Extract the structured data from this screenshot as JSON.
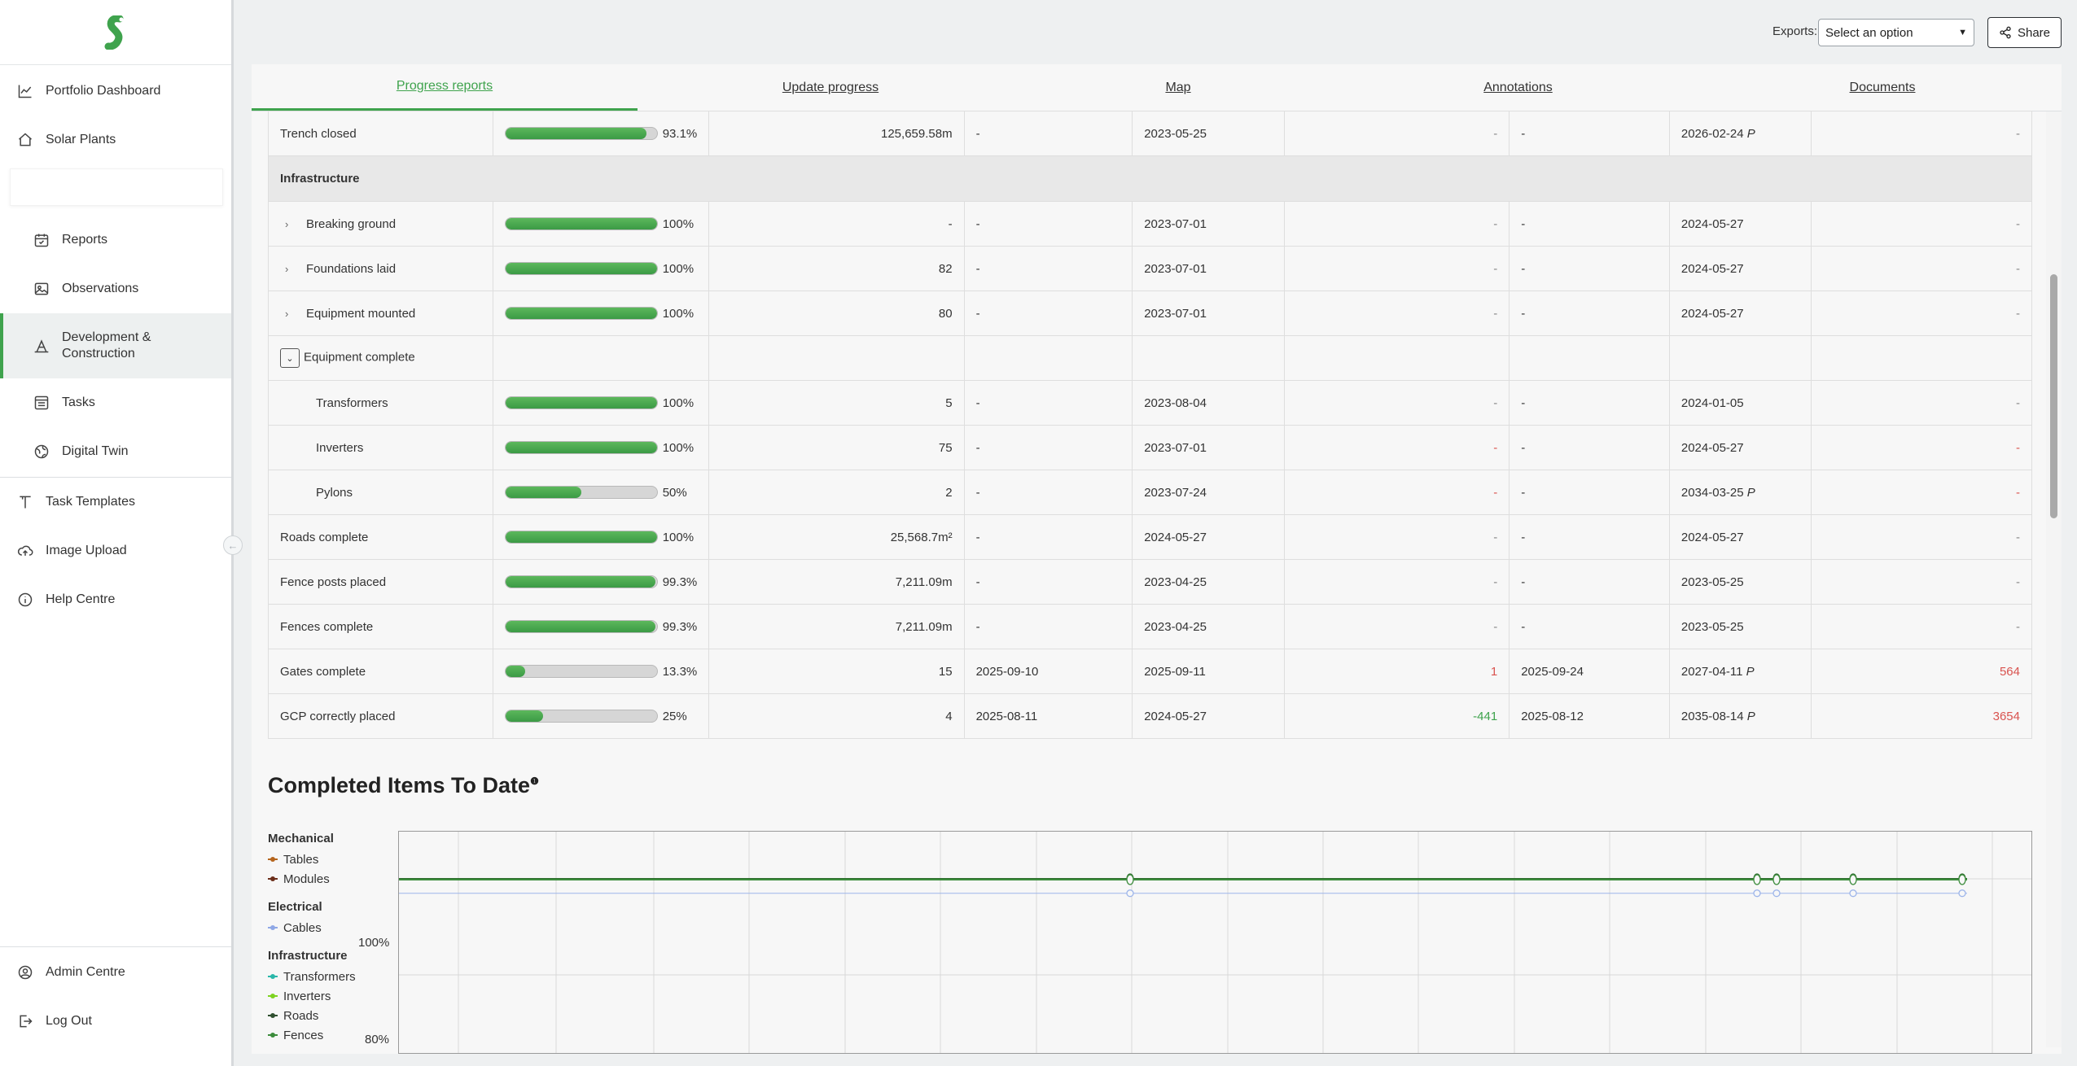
{
  "sidebar": {
    "items": [
      {
        "label": "Portfolio Dashboard",
        "icon": "chart-line-icon"
      },
      {
        "label": "Solar Plants",
        "icon": "home-icon"
      },
      {
        "label": "Reports",
        "icon": "calendar-check-icon"
      },
      {
        "label": "Observations",
        "icon": "image-icon"
      },
      {
        "label": "Development & Construction",
        "icon": "construction-icon"
      },
      {
        "label": "Tasks",
        "icon": "list-icon"
      },
      {
        "label": "Digital Twin",
        "icon": "globe-icon"
      },
      {
        "label": "Task Templates",
        "icon": "template-icon"
      },
      {
        "label": "Image Upload",
        "icon": "cloud-upload-icon"
      },
      {
        "label": "Help Centre",
        "icon": "info-icon"
      },
      {
        "label": "Admin Centre",
        "icon": "user-circle-icon"
      },
      {
        "label": "Log Out",
        "icon": "logout-icon"
      }
    ],
    "brand_color": "#3fa34d"
  },
  "topbar": {
    "exports_label": "Exports:",
    "exports_selected": "Select an option",
    "share_label": "Share"
  },
  "tabs": [
    {
      "label": "Progress reports",
      "active": true
    },
    {
      "label": "Update progress",
      "active": false
    },
    {
      "label": "Map",
      "active": false
    },
    {
      "label": "Annotations",
      "active": false
    },
    {
      "label": "Documents",
      "active": false
    }
  ],
  "table": {
    "rows": [
      {
        "name": "Trench closed",
        "pct": 93.1,
        "pct_label": "93.1%",
        "total": "125,659.58m",
        "c4": "-",
        "c5": "2023-05-25",
        "c6": "-",
        "c7": "-",
        "c8": "2026-02-24",
        "c8p": "P",
        "c9": "-"
      },
      {
        "section": "Infrastructure"
      },
      {
        "name": "Breaking ground",
        "expand": "closed",
        "pct": 100,
        "pct_label": "100%",
        "total": "-",
        "c4": "-",
        "c5": "2023-07-01",
        "c6": "-",
        "c7": "-",
        "c8": "2024-05-27",
        "c8p": "",
        "c9": "-"
      },
      {
        "name": "Foundations laid",
        "expand": "closed",
        "pct": 100,
        "pct_label": "100%",
        "total": "82",
        "c4": "-",
        "c5": "2023-07-01",
        "c6": "-",
        "c7": "-",
        "c8": "2024-05-27",
        "c8p": "",
        "c9": "-"
      },
      {
        "name": "Equipment mounted",
        "expand": "closed",
        "pct": 100,
        "pct_label": "100%",
        "total": "80",
        "c4": "-",
        "c5": "2023-07-01",
        "c6": "-",
        "c7": "-",
        "c8": "2024-05-27",
        "c8p": "",
        "c9": "-"
      },
      {
        "name": "Equipment complete",
        "expand": "open"
      },
      {
        "name": "Transformers",
        "sub": true,
        "pct": 100,
        "pct_label": "100%",
        "total": "5",
        "c4": "-",
        "c5": "2023-08-04",
        "c6": "-",
        "c7": "-",
        "c8": "2024-01-05",
        "c8p": "",
        "c9": "-"
      },
      {
        "name": "Inverters",
        "sub": true,
        "pct": 100,
        "pct_label": "100%",
        "total": "75",
        "c4": "-",
        "c5": "2023-07-01",
        "c6": "-",
        "c6red": true,
        "c7": "-",
        "c8": "2024-05-27",
        "c8p": "",
        "c9": "-",
        "c9red": true
      },
      {
        "name": "Pylons",
        "sub": true,
        "pct": 50,
        "pct_label": "50%",
        "total": "2",
        "c4": "-",
        "c5": "2023-07-24",
        "c6": "-",
        "c6red": true,
        "c7": "-",
        "c8": "2034-03-25",
        "c8p": "P",
        "c9": "-",
        "c9red": true
      },
      {
        "name": "Roads complete",
        "pct": 100,
        "pct_label": "100%",
        "total": "25,568.7m²",
        "c4": "-",
        "c5": "2024-05-27",
        "c6": "-",
        "c7": "-",
        "c8": "2024-05-27",
        "c8p": "",
        "c9": "-"
      },
      {
        "name": "Fence posts placed",
        "pct": 99.3,
        "pct_label": "99.3%",
        "total": "7,211.09m",
        "c4": "-",
        "c5": "2023-04-25",
        "c6": "-",
        "c7": "-",
        "c8": "2023-05-25",
        "c8p": "",
        "c9": "-"
      },
      {
        "name": "Fences complete",
        "pct": 99.3,
        "pct_label": "99.3%",
        "total": "7,211.09m",
        "c4": "-",
        "c5": "2023-04-25",
        "c6": "-",
        "c7": "-",
        "c8": "2023-05-25",
        "c8p": "",
        "c9": "-"
      },
      {
        "name": "Gates complete",
        "pct": 13.3,
        "pct_label": "13.3%",
        "total": "15",
        "c4": "2025-09-10",
        "c5": "2025-09-11",
        "c6": "1",
        "c6red": true,
        "c7": "2025-09-24",
        "c8": "2027-04-11",
        "c8p": "P",
        "c9": "564",
        "c9red": true
      },
      {
        "name": "GCP correctly placed",
        "pct": 25,
        "pct_label": "25%",
        "total": "4",
        "c4": "2025-08-11",
        "c5": "2024-05-27",
        "c6": "-441",
        "c6green": true,
        "c7": "2025-08-12",
        "c8": "2035-08-14",
        "c8p": "P",
        "c9": "3654",
        "c9red": true
      }
    ]
  },
  "chart_section": {
    "title": "Completed Items To Date",
    "info_mark": "❶"
  },
  "chart_data": {
    "type": "line",
    "title": "Completed Items To Date",
    "ylabel": "",
    "yticks": [
      "100%",
      "80%"
    ],
    "legend": [
      {
        "group": "Mechanical",
        "items": [
          {
            "name": "Tables",
            "color": "#b5651d"
          },
          {
            "name": "Modules",
            "color": "#6b2e1a"
          }
        ]
      },
      {
        "group": "Electrical",
        "items": [
          {
            "name": "Cables",
            "color": "#8fa8e6"
          }
        ]
      },
      {
        "group": "Infrastructure",
        "items": [
          {
            "name": "Transformers",
            "color": "#2ab7a9"
          },
          {
            "name": "Inverters",
            "color": "#7ed321"
          },
          {
            "name": "Roads",
            "color": "#2f4f2f"
          },
          {
            "name": "Fences",
            "color": "#3c8c3c"
          }
        ]
      }
    ],
    "series": [
      {
        "name": "Tables",
        "values": [
          100,
          100,
          100,
          100,
          100,
          100
        ]
      },
      {
        "name": "Modules",
        "values": [
          100,
          100,
          100,
          100,
          100,
          100
        ]
      },
      {
        "name": "Cables",
        "values": [
          97,
          97,
          97,
          97,
          97,
          97
        ]
      }
    ],
    "grid": true,
    "legend_placement": "left"
  }
}
